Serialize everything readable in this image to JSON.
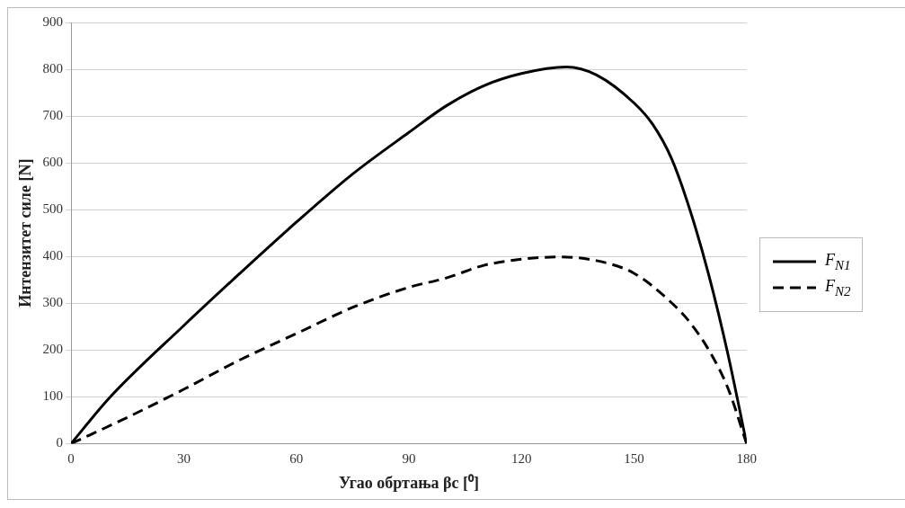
{
  "chart_data": {
    "type": "line",
    "xlabel": "Угао обртања βc [⁰]",
    "ylabel": "Интензитет силе [N]",
    "xlim": [
      0,
      180
    ],
    "xticks": [
      0,
      30,
      60,
      90,
      120,
      150,
      180
    ],
    "ylim": [
      0,
      900
    ],
    "yticks": [
      0,
      100,
      200,
      300,
      400,
      500,
      600,
      700,
      800,
      900
    ],
    "grid": "y",
    "legend": "right",
    "marker": "none",
    "series": [
      {
        "name": "F$_{N1}$",
        "color": "#000000",
        "line_style": "solid",
        "x": [
          0,
          10,
          30,
          45,
          60,
          75,
          90,
          100,
          110,
          120,
          132,
          140,
          150,
          155,
          160,
          165,
          170,
          175,
          180
        ],
        "values": [
          0,
          96,
          252,
          364,
          473,
          576,
          665,
          722,
          765,
          791,
          805,
          788,
          728,
          682,
          609,
          497,
          358,
          192,
          0
        ]
      },
      {
        "name": "F$_{N2}$",
        "color": "#000000",
        "line_style": "dashed",
        "x": [
          0,
          15,
          30,
          45,
          60,
          75,
          90,
          100,
          110,
          120,
          130,
          140,
          150,
          160,
          165,
          170,
          175,
          180
        ],
        "values": [
          0,
          56,
          116,
          179,
          235,
          291,
          334,
          354,
          381,
          394,
          399,
          391,
          364,
          301,
          258,
          199,
          119,
          0
        ]
      }
    ]
  }
}
